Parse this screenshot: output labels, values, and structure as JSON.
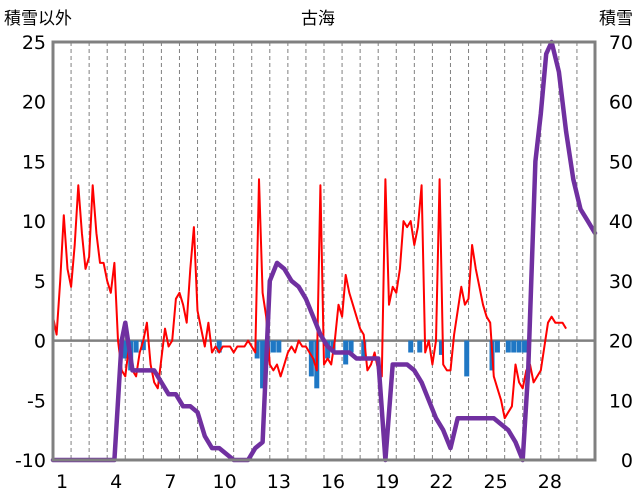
{
  "chart_data": {
    "type": "line",
    "title": "古海",
    "ylabel_left": "積雪以外",
    "ylabel_right": "積雪",
    "xlim": [
      0,
      30
    ],
    "ylim_left": [
      -10,
      25
    ],
    "ylim_right": [
      0,
      70
    ],
    "x_ticks": [
      1,
      4,
      7,
      10,
      13,
      16,
      19,
      22,
      25,
      28
    ],
    "y_ticks_left": [
      -10,
      -5,
      0,
      5,
      10,
      15,
      20,
      25
    ],
    "y_ticks_right": [
      0,
      10,
      20,
      30,
      40,
      50,
      60,
      70
    ],
    "grid_x": "dashed-daily",
    "zero_line": true,
    "colors": {
      "temperature": "#ff0000",
      "precipitation": "#1f77c4",
      "snow_depth": "#7030a0",
      "frame": "#808080",
      "grid": "#808080"
    },
    "series": [
      {
        "axis": "left",
        "kind": "line",
        "points": [
          [
            0.0,
            2
          ],
          [
            0.2,
            0.5
          ],
          [
            0.4,
            5
          ],
          [
            0.6,
            10.5
          ],
          [
            0.8,
            6
          ],
          [
            1.0,
            4.5
          ],
          [
            1.2,
            8
          ],
          [
            1.4,
            13
          ],
          [
            1.6,
            9
          ],
          [
            1.8,
            6
          ],
          [
            2.0,
            7
          ],
          [
            2.2,
            13
          ],
          [
            2.4,
            9
          ],
          [
            2.6,
            6.5
          ],
          [
            2.8,
            6.5
          ],
          [
            3.0,
            5
          ],
          [
            3.2,
            4
          ],
          [
            3.4,
            6.5
          ],
          [
            3.6,
            0
          ],
          [
            3.8,
            -2.5
          ],
          [
            4.0,
            -3
          ],
          [
            4.2,
            -0.5
          ],
          [
            4.4,
            -2.5
          ],
          [
            4.6,
            -3
          ],
          [
            4.8,
            -1
          ],
          [
            5.0,
            0
          ],
          [
            5.2,
            1.5
          ],
          [
            5.4,
            -2
          ],
          [
            5.6,
            -3.5
          ],
          [
            5.8,
            -4
          ],
          [
            6.0,
            -1.5
          ],
          [
            6.2,
            1
          ],
          [
            6.4,
            -0.5
          ],
          [
            6.6,
            0
          ],
          [
            6.8,
            3.5
          ],
          [
            7.0,
            4
          ],
          [
            7.2,
            3
          ],
          [
            7.4,
            1.5
          ],
          [
            7.6,
            6
          ],
          [
            7.8,
            9.5
          ],
          [
            8.0,
            2.5
          ],
          [
            8.2,
            1
          ],
          [
            8.4,
            -0.5
          ],
          [
            8.6,
            1.5
          ],
          [
            8.8,
            -1
          ],
          [
            9.0,
            -0.5
          ],
          [
            9.2,
            -1
          ],
          [
            9.4,
            -0.5
          ],
          [
            9.6,
            -0.5
          ],
          [
            9.8,
            -0.5
          ],
          [
            10.0,
            -1
          ],
          [
            10.2,
            -0.5
          ],
          [
            10.4,
            -0.5
          ],
          [
            10.6,
            -0.5
          ],
          [
            10.8,
            0
          ],
          [
            11.0,
            -0.5
          ],
          [
            11.2,
            -1
          ],
          [
            11.4,
            13.5
          ],
          [
            11.6,
            4
          ],
          [
            11.8,
            2
          ],
          [
            12.0,
            -2
          ],
          [
            12.2,
            -2.5
          ],
          [
            12.4,
            -2
          ],
          [
            12.6,
            -3
          ],
          [
            12.8,
            -2
          ],
          [
            13.0,
            -1
          ],
          [
            13.2,
            -0.5
          ],
          [
            13.4,
            -1
          ],
          [
            13.6,
            0
          ],
          [
            13.8,
            -0.5
          ],
          [
            14.0,
            -0.5
          ],
          [
            14.2,
            -1
          ],
          [
            14.4,
            -1.5
          ],
          [
            14.6,
            -2.5
          ],
          [
            14.8,
            13
          ],
          [
            15.0,
            -2
          ],
          [
            15.2,
            -1.5
          ],
          [
            15.4,
            -2
          ],
          [
            15.6,
            0
          ],
          [
            15.8,
            3
          ],
          [
            16.0,
            2
          ],
          [
            16.2,
            5.5
          ],
          [
            16.4,
            4
          ],
          [
            16.6,
            3
          ],
          [
            16.8,
            2
          ],
          [
            17.0,
            1
          ],
          [
            17.2,
            0.5
          ],
          [
            17.4,
            -2.5
          ],
          [
            17.6,
            -2
          ],
          [
            17.8,
            -1
          ],
          [
            18.0,
            -2.5
          ],
          [
            18.2,
            -3
          ],
          [
            18.4,
            13.5
          ],
          [
            18.6,
            3
          ],
          [
            18.8,
            4.5
          ],
          [
            19.0,
            4
          ],
          [
            19.2,
            6
          ],
          [
            19.4,
            10
          ],
          [
            19.6,
            9.5
          ],
          [
            19.8,
            10
          ],
          [
            20.0,
            8
          ],
          [
            20.2,
            9.5
          ],
          [
            20.4,
            13
          ],
          [
            20.6,
            -1
          ],
          [
            20.8,
            0
          ],
          [
            21.0,
            -2
          ],
          [
            21.2,
            0
          ],
          [
            21.4,
            13.5
          ],
          [
            21.6,
            -2
          ],
          [
            21.8,
            -2.5
          ],
          [
            22.0,
            -2.5
          ],
          [
            22.2,
            0.5
          ],
          [
            22.4,
            2.5
          ],
          [
            22.6,
            4.5
          ],
          [
            22.8,
            3
          ],
          [
            23.0,
            3.5
          ],
          [
            23.2,
            8
          ],
          [
            23.4,
            6
          ],
          [
            23.6,
            4.5
          ],
          [
            23.8,
            3
          ],
          [
            24.0,
            2
          ],
          [
            24.2,
            1.5
          ],
          [
            24.4,
            -3
          ],
          [
            24.6,
            -4
          ],
          [
            24.8,
            -5
          ],
          [
            25.0,
            -6.5
          ],
          [
            25.2,
            -6
          ],
          [
            25.4,
            -5.5
          ],
          [
            25.6,
            -2
          ],
          [
            25.8,
            -3.5
          ],
          [
            26.0,
            -4
          ],
          [
            26.2,
            -2.5
          ],
          [
            26.4,
            -2
          ],
          [
            26.6,
            -3.5
          ],
          [
            26.8,
            -3
          ],
          [
            27.0,
            -2.5
          ],
          [
            27.2,
            -0.5
          ],
          [
            27.4,
            1.5
          ],
          [
            27.6,
            2
          ],
          [
            27.8,
            1.5
          ],
          [
            28.0,
            1.5
          ],
          [
            28.2,
            1.5
          ],
          [
            28.4,
            1
          ]
        ]
      },
      {
        "axis": "left",
        "kind": "bar",
        "points": [
          [
            4.0,
            -1.5
          ],
          [
            4.3,
            -2.5
          ],
          [
            4.6,
            -1
          ],
          [
            5.0,
            -0.8
          ],
          [
            9.2,
            -1
          ],
          [
            11.3,
            -1.5
          ],
          [
            11.6,
            -4
          ],
          [
            11.9,
            -1
          ],
          [
            12.2,
            -1
          ],
          [
            12.5,
            -1
          ],
          [
            14.3,
            -3
          ],
          [
            14.6,
            -4
          ],
          [
            15.2,
            -1.5
          ],
          [
            15.5,
            -1
          ],
          [
            16.2,
            -2
          ],
          [
            16.5,
            -1
          ],
          [
            17.2,
            -1.5
          ],
          [
            19.8,
            -1
          ],
          [
            20.3,
            -1
          ],
          [
            21.5,
            -1.2
          ],
          [
            22.9,
            -3
          ],
          [
            24.3,
            -2.5
          ],
          [
            24.6,
            -1
          ],
          [
            25.2,
            -1
          ],
          [
            25.5,
            -1
          ],
          [
            25.8,
            -1
          ],
          [
            26.1,
            -1
          ]
        ]
      },
      {
        "axis": "right",
        "kind": "line",
        "points": [
          [
            0.0,
            0
          ],
          [
            3.0,
            0
          ],
          [
            3.4,
            0
          ],
          [
            3.8,
            20
          ],
          [
            4.0,
            23
          ],
          [
            4.4,
            15
          ],
          [
            4.8,
            15
          ],
          [
            5.2,
            15
          ],
          [
            5.6,
            15
          ],
          [
            6.0,
            13
          ],
          [
            6.4,
            11
          ],
          [
            6.8,
            11
          ],
          [
            7.2,
            9
          ],
          [
            7.6,
            9
          ],
          [
            8.0,
            8
          ],
          [
            8.4,
            4
          ],
          [
            8.8,
            2
          ],
          [
            9.2,
            2
          ],
          [
            9.6,
            1
          ],
          [
            10.0,
            0
          ],
          [
            10.4,
            0
          ],
          [
            10.8,
            0
          ],
          [
            11.2,
            2
          ],
          [
            11.6,
            3
          ],
          [
            12.0,
            30
          ],
          [
            12.4,
            33
          ],
          [
            12.8,
            32
          ],
          [
            13.2,
            30
          ],
          [
            13.6,
            29
          ],
          [
            14.0,
            27
          ],
          [
            14.4,
            24
          ],
          [
            14.8,
            21
          ],
          [
            15.2,
            19
          ],
          [
            15.6,
            18
          ],
          [
            16.0,
            18
          ],
          [
            16.4,
            18
          ],
          [
            16.8,
            17
          ],
          [
            17.2,
            17
          ],
          [
            17.6,
            17
          ],
          [
            18.0,
            17
          ],
          [
            18.4,
            0
          ],
          [
            18.8,
            16
          ],
          [
            19.2,
            16
          ],
          [
            19.6,
            16
          ],
          [
            20.0,
            15
          ],
          [
            20.4,
            13
          ],
          [
            20.8,
            10
          ],
          [
            21.2,
            7
          ],
          [
            21.6,
            5
          ],
          [
            22.0,
            2
          ],
          [
            22.4,
            7
          ],
          [
            22.8,
            7
          ],
          [
            23.2,
            7
          ],
          [
            23.6,
            7
          ],
          [
            24.0,
            7
          ],
          [
            24.4,
            7
          ],
          [
            24.8,
            6
          ],
          [
            25.2,
            5
          ],
          [
            25.6,
            3
          ],
          [
            26.0,
            0
          ],
          [
            26.3,
            15
          ],
          [
            26.7,
            50
          ],
          [
            27.0,
            58
          ],
          [
            27.3,
            68
          ],
          [
            27.6,
            70
          ],
          [
            28.0,
            65
          ],
          [
            28.4,
            55
          ],
          [
            28.8,
            47
          ],
          [
            29.2,
            42
          ],
          [
            29.6,
            40
          ],
          [
            30.0,
            38
          ]
        ]
      }
    ]
  }
}
